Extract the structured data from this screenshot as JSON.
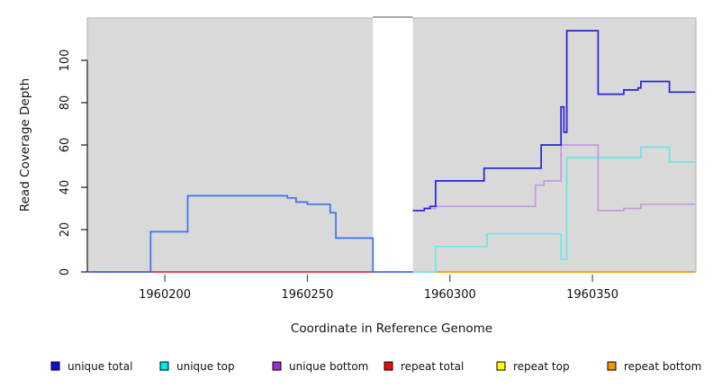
{
  "axes": {
    "x": {
      "label": "Coordinate in Reference Genome",
      "ticks": [
        1960200,
        1960250,
        1960300,
        1960350
      ],
      "tick_labels": [
        "1960200",
        "1960250",
        "1960300",
        "1960350"
      ]
    },
    "y": {
      "label": "Read Coverage Depth",
      "ticks": [
        0,
        20,
        40,
        60,
        80,
        100
      ],
      "tick_labels": [
        "0",
        "20",
        "40",
        "60",
        "80",
        "100"
      ]
    }
  },
  "chart_data": {
    "type": "line",
    "subtype": "step-after-coverage",
    "title": "",
    "xlabel": "Coordinate in Reference Genome",
    "ylabel": "Read Coverage Depth",
    "xlim": [
      1960172.8,
      1960386.3
    ],
    "ylim": [
      0,
      120
    ],
    "grid": false,
    "panel_bg": "#d9d9d9",
    "panel_border": "#b0b0b0",
    "gap_region": {
      "from": 1960273,
      "to": 1960287,
      "color": "#ffffff",
      "top_line_color": "#8c8c8c"
    },
    "series": [
      {
        "name": "repeat total",
        "color": "#e03248",
        "points": [
          [
            1960173,
            0
          ]
        ],
        "end": 1960273
      },
      {
        "name": "repeat bottom",
        "color": "#ff9500",
        "points": [
          [
            1960295,
            0
          ]
        ],
        "end": 1960386
      },
      {
        "name": "unique top",
        "color": "#6ce6e6",
        "points": [
          [
            1960287,
            0
          ],
          [
            1960295,
            12
          ],
          [
            1960313,
            18
          ],
          [
            1960339,
            6
          ],
          [
            1960341,
            54
          ],
          [
            1960367,
            59
          ],
          [
            1960377,
            52
          ]
        ],
        "end": 1960386
      },
      {
        "name": "unique bottom",
        "color": "#c49add",
        "points": [
          [
            1960287,
            29
          ],
          [
            1960291,
            30
          ],
          [
            1960295,
            31
          ],
          [
            1960330,
            41
          ],
          [
            1960333,
            43
          ],
          [
            1960339,
            60
          ],
          [
            1960352,
            29
          ],
          [
            1960361,
            30
          ],
          [
            1960367,
            32
          ]
        ],
        "end": 1960386
      },
      {
        "name": "unique total (left segment)",
        "color": "#3a72f2",
        "points": [
          [
            1960173,
            0
          ],
          [
            1960195,
            19
          ],
          [
            1960208,
            36
          ],
          [
            1960243,
            35
          ],
          [
            1960246,
            33
          ],
          [
            1960250,
            32
          ],
          [
            1960258,
            28
          ],
          [
            1960260,
            16
          ],
          [
            1960273,
            0
          ]
        ],
        "end": 1960287
      },
      {
        "name": "unique total (right segment)",
        "color": "#2822d6",
        "points": [
          [
            1960287,
            29
          ],
          [
            1960291,
            30
          ],
          [
            1960293,
            31
          ],
          [
            1960295,
            43
          ],
          [
            1960312,
            49
          ],
          [
            1960332,
            60
          ],
          [
            1960339,
            78
          ],
          [
            1960340,
            66
          ],
          [
            1960341,
            114
          ],
          [
            1960352,
            84
          ],
          [
            1960361,
            86
          ],
          [
            1960366,
            87
          ],
          [
            1960367,
            90
          ],
          [
            1960377,
            85
          ]
        ],
        "end": 1960386
      }
    ]
  },
  "legend": {
    "items": [
      {
        "label": "unique total",
        "color": "#0f0fd6"
      },
      {
        "label": "unique top",
        "color": "#00e8e8"
      },
      {
        "label": "unique bottom",
        "color": "#9d2fd1"
      },
      {
        "label": "repeat total",
        "color": "#ea0c0c"
      },
      {
        "label": "repeat top",
        "color": "#fdfd0a"
      },
      {
        "label": "repeat bottom",
        "color": "#f29407"
      }
    ]
  }
}
